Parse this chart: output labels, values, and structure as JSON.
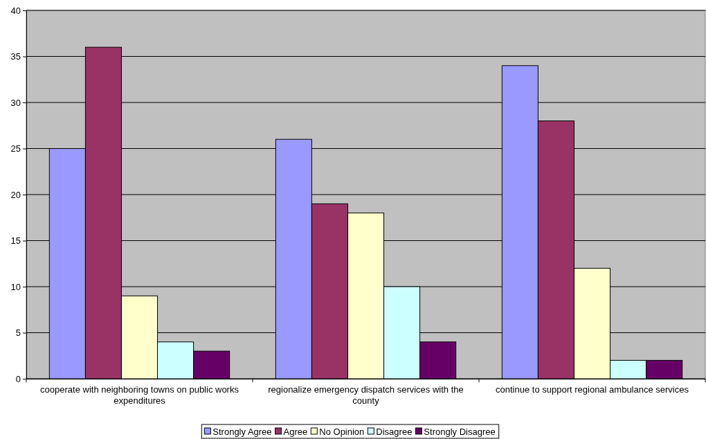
{
  "chart_data": {
    "type": "bar",
    "categories": [
      "cooperate with neighboring towns on public works expenditures",
      "regionalize emergency dispatch services with the county",
      "continue to support regional ambulance services"
    ],
    "series": [
      {
        "name": "Strongly Agree",
        "color": "#9999ff",
        "values": [
          25,
          26,
          34
        ]
      },
      {
        "name": "Agree",
        "color": "#993366",
        "values": [
          36,
          19,
          28
        ]
      },
      {
        "name": "No Opinion",
        "color": "#ffffcc",
        "values": [
          9,
          18,
          12
        ]
      },
      {
        "name": "Disagree",
        "color": "#ccffff",
        "values": [
          4,
          10,
          2
        ]
      },
      {
        "name": "Strongly Disagree",
        "color": "#660066",
        "values": [
          3,
          4,
          2
        ]
      }
    ],
    "ylim": [
      0,
      40
    ],
    "yticks": [
      0,
      5,
      10,
      15,
      20,
      25,
      30,
      35,
      40
    ],
    "grid": "y",
    "legend": "bottom"
  }
}
